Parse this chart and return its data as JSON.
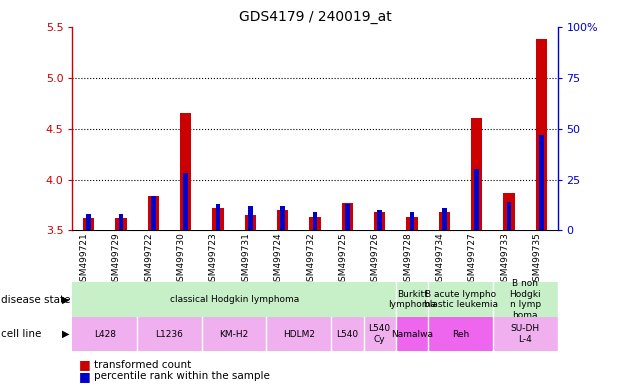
{
  "title": "GDS4179 / 240019_at",
  "samples": [
    "GSM499721",
    "GSM499729",
    "GSM499722",
    "GSM499730",
    "GSM499723",
    "GSM499731",
    "GSM499724",
    "GSM499732",
    "GSM499725",
    "GSM499726",
    "GSM499728",
    "GSM499734",
    "GSM499727",
    "GSM499733",
    "GSM499735"
  ],
  "transformed_count": [
    3.62,
    3.62,
    3.84,
    4.65,
    3.72,
    3.65,
    3.7,
    3.63,
    3.77,
    3.68,
    3.63,
    3.68,
    4.6,
    3.87,
    5.38
  ],
  "percentile_rank": [
    8,
    8,
    17,
    28,
    13,
    12,
    12,
    9,
    13,
    10,
    9,
    11,
    30,
    14,
    47
  ],
  "ylim_left": [
    3.5,
    5.5
  ],
  "ylim_right": [
    0,
    100
  ],
  "yticks_left": [
    3.5,
    4.0,
    4.5,
    5.0,
    5.5
  ],
  "yticks_right": [
    0,
    25,
    50,
    75,
    100
  ],
  "disease_state_groups": [
    {
      "label": "classical Hodgkin lymphoma",
      "start": 0,
      "end": 10,
      "color": "#c8f0c8"
    },
    {
      "label": "Burkitt\nlymphoma",
      "start": 10,
      "end": 11,
      "color": "#c8f0c8"
    },
    {
      "label": "B acute lympho\nblastic leukemia",
      "start": 11,
      "end": 13,
      "color": "#c8f0c8"
    },
    {
      "label": "B non\nHodgki\nn lymp\nhoma",
      "start": 13,
      "end": 15,
      "color": "#c8f0c8"
    }
  ],
  "cell_line_groups": [
    {
      "label": "L428",
      "start": 0,
      "end": 2,
      "color": "#f0b0f0"
    },
    {
      "label": "L1236",
      "start": 2,
      "end": 4,
      "color": "#f0b0f0"
    },
    {
      "label": "KM-H2",
      "start": 4,
      "end": 6,
      "color": "#f0b0f0"
    },
    {
      "label": "HDLM2",
      "start": 6,
      "end": 8,
      "color": "#f0b0f0"
    },
    {
      "label": "L540",
      "start": 8,
      "end": 9,
      "color": "#f0b0f0"
    },
    {
      "label": "L540\nCy",
      "start": 9,
      "end": 10,
      "color": "#f0b0f0"
    },
    {
      "label": "Namalwa",
      "start": 10,
      "end": 11,
      "color": "#ee66ee"
    },
    {
      "label": "Reh",
      "start": 11,
      "end": 13,
      "color": "#ee66ee"
    },
    {
      "label": "SU-DH\nL-4",
      "start": 13,
      "end": 15,
      "color": "#f0b0f0"
    }
  ],
  "bar_color_red": "#cc0000",
  "bar_color_blue": "#0000cc",
  "tick_bg_color": "#cccccc",
  "left_axis_color": "#cc0000",
  "right_axis_color": "#0000cc",
  "grid_dotted_color": "#000000"
}
